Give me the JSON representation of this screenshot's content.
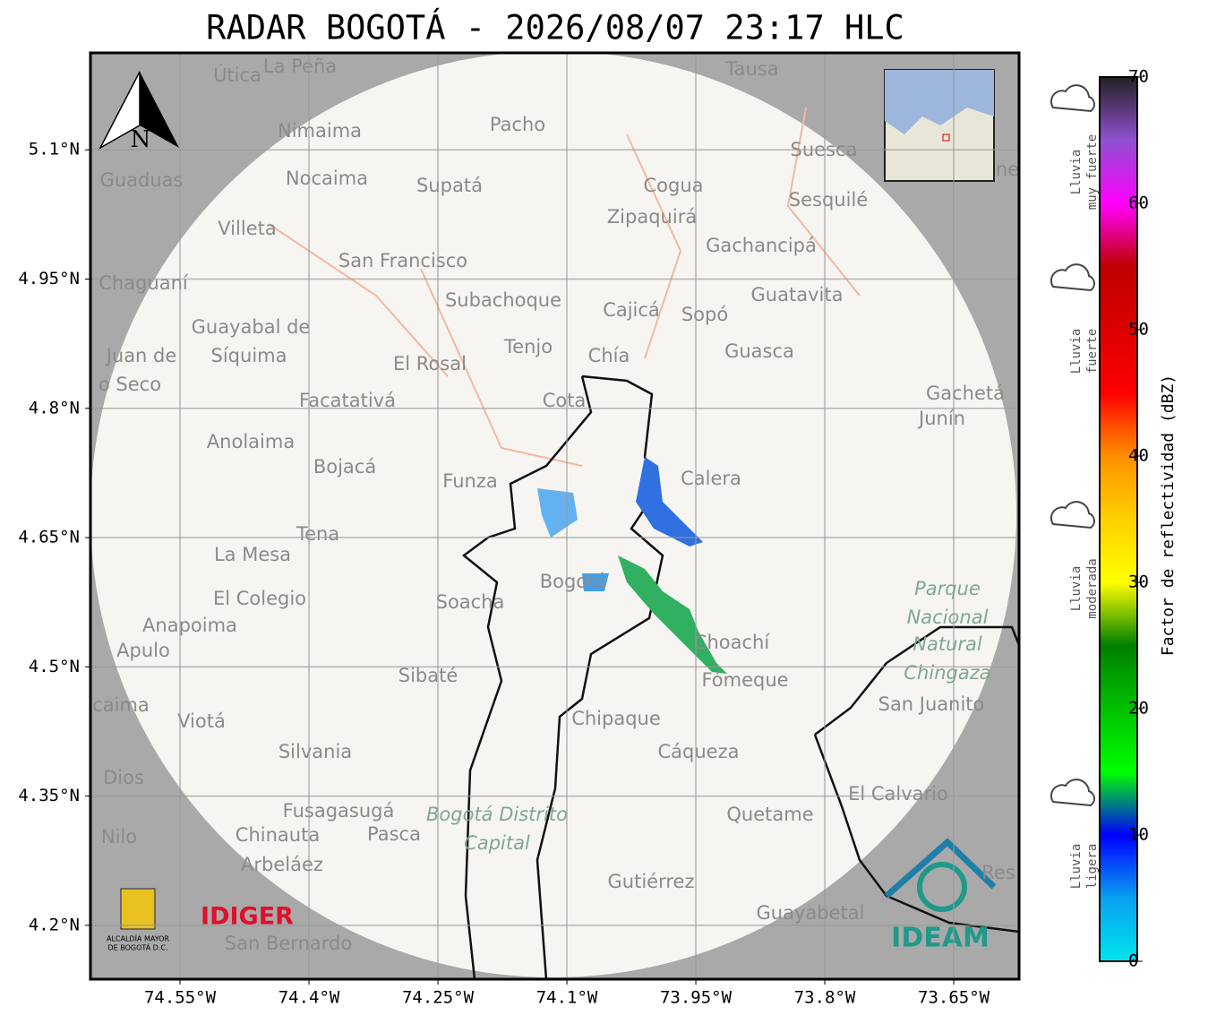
{
  "chart_data": {
    "type": "radar_map",
    "title": "RADAR BOGOTÁ - 2026/08/07 23:17 HLC",
    "xlim": [
      -74.6542,
      -73.574
    ],
    "ylim": [
      4.1375,
      5.2125
    ],
    "xticks": [
      {
        "value": -74.55,
        "label": "74.55°W"
      },
      {
        "value": -74.4,
        "label": "74.4°W"
      },
      {
        "value": -74.25,
        "label": "74.25°W"
      },
      {
        "value": -74.1,
        "label": "74.1°W"
      },
      {
        "value": -73.95,
        "label": "73.95°W"
      },
      {
        "value": -73.8,
        "label": "73.8°W"
      },
      {
        "value": -73.65,
        "label": "73.65°W"
      }
    ],
    "yticks": [
      {
        "value": 5.1,
        "label": "5.1°N"
      },
      {
        "value": 4.95,
        "label": "4.95°N"
      },
      {
        "value": 4.8,
        "label": "4.8°N"
      },
      {
        "value": 4.65,
        "label": "4.65°N"
      },
      {
        "value": 4.5,
        "label": "4.5°N"
      },
      {
        "value": 4.35,
        "label": "4.35°N"
      },
      {
        "value": 4.2,
        "label": "4.2°N"
      }
    ],
    "grid": true,
    "colorbar": {
      "label": "Factor de reflectividad (dBZ)",
      "lim": [
        0,
        70
      ],
      "ticks": [
        0,
        10,
        20,
        30,
        40,
        50,
        60,
        70
      ],
      "colors": [
        "#00e5ee",
        "#0aa0f0",
        "#0000ff",
        "#00ff00",
        "#00c000",
        "#008000",
        "#ffff00",
        "#ffd000",
        "#ff9000",
        "#ff0000",
        "#dd0000",
        "#c00000",
        "#ff00ff",
        "#9050d0",
        "#222222"
      ]
    },
    "intensity_labels": [
      [
        "Lluvia",
        "muy fuerte"
      ],
      [
        "Lluvia",
        "fuerte"
      ],
      [
        "Lluvia",
        "moderada"
      ],
      [
        "Lluvia",
        "ligera"
      ]
    ],
    "compass": "N",
    "logos": [
      "IDIGER",
      "IDEAM",
      "ALCALDÍA MAYOR",
      "DE BOGOTÁ D.C."
    ],
    "places": [
      "Útica",
      "La Peña",
      "Tausa",
      "Pacho",
      "Nimaima",
      "Guaduas",
      "Nocaima",
      "Supatá",
      "Cogua",
      "Suesca",
      "Sesquilé",
      "Zipaquirá",
      "Villeta",
      "Gachancipá",
      "San Francisco",
      "Chaguaní",
      "Guatavita",
      "Subachoque",
      "Cajicá",
      "Sopó",
      "Guayabal de",
      "Síquima",
      "Juan de",
      "o Seco",
      "Tenjo",
      "Chía",
      "Guasca",
      "El Rosal",
      "Facatativá",
      "Cota",
      "Gachetá",
      "Junín",
      "Anolaima",
      "Bojacá",
      "Funza",
      "Calera",
      "Tena",
      "La Mesa",
      "El Colegio",
      "Soacha",
      "Bogotá",
      "Anapoima",
      "Apulo",
      "Choachí",
      "Fómeque",
      "Sibaté",
      "San Juanito",
      "caima",
      "Viotá",
      "Chipaque",
      "Silvania",
      "Cáqueza",
      "Dios",
      "El Calvario",
      "Fusagasugá",
      "Quetame",
      "Nilo",
      "Chinauta",
      "Pasca",
      "Arbeláez",
      "Gutiérrez",
      "Res",
      "Guayabetal",
      "San Bernardo",
      "ne"
    ],
    "parks": [
      "Parque",
      "Nacional",
      "Natural",
      "Chingaza",
      "Bogotá Distrito",
      "Capital"
    ]
  }
}
